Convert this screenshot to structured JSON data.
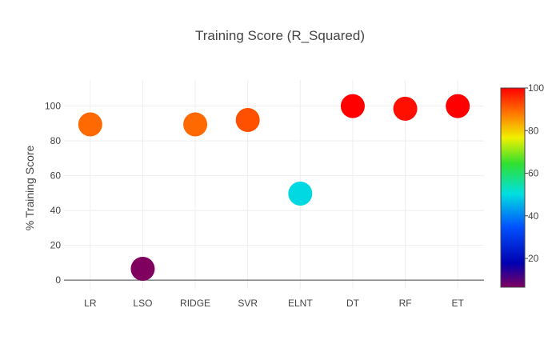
{
  "chart_data": {
    "type": "scatter",
    "title": "Training Score (R_Squared)",
    "xlabel": "",
    "ylabel": "% Training Score",
    "categories": [
      "LR",
      "LSO",
      "RIDGE",
      "SVR",
      "ELNT",
      "DT",
      "RF",
      "ET"
    ],
    "values": [
      89.5,
      6.5,
      89.5,
      92,
      49.7,
      100,
      98.5,
      100
    ],
    "ylim": [
      -5,
      115
    ],
    "yticks": [
      0,
      20,
      40,
      60,
      80,
      100
    ],
    "grid": true,
    "colorscale": {
      "name": "Jet-like",
      "range": [
        6.5,
        100
      ],
      "ticks": [
        20,
        40,
        60,
        80,
        100
      ],
      "stops": [
        {
          "t": 0.0,
          "color": "#800060"
        },
        {
          "t": 0.12,
          "color": "#0000b0"
        },
        {
          "t": 0.3,
          "color": "#0050ff"
        },
        {
          "t": 0.47,
          "color": "#00e0e0"
        },
        {
          "t": 0.62,
          "color": "#30e030"
        },
        {
          "t": 0.75,
          "color": "#f0f000"
        },
        {
          "t": 0.87,
          "color": "#ff7a00"
        },
        {
          "t": 1.0,
          "color": "#ff0000"
        }
      ]
    }
  }
}
